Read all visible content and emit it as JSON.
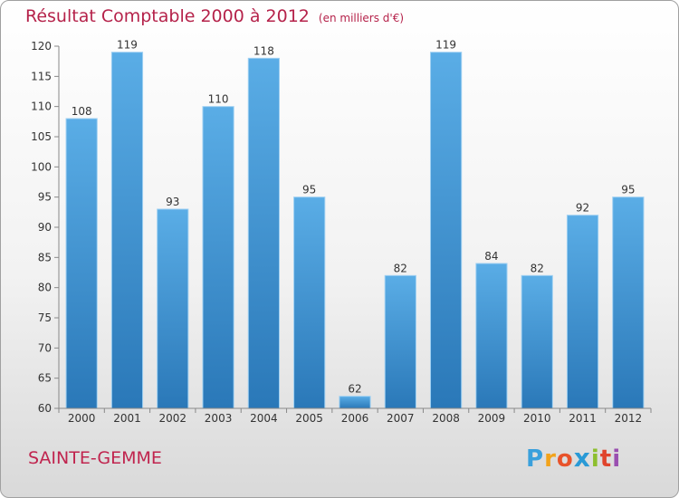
{
  "page": {
    "commune": "SAINTE-GEMME",
    "logo_letters": [
      "P",
      "r",
      "o",
      "x",
      "i",
      "t",
      "i"
    ]
  },
  "colors": {
    "title": "#b5224a",
    "bar_top": "#5aade6",
    "bar_bottom": "#2a78b8",
    "axis": "#888888",
    "text": "#333333"
  },
  "chart_data": {
    "type": "bar",
    "title": "Résultat Comptable 2000 à 2012",
    "subtitle": "(en milliers d'€)",
    "xlabel": "",
    "ylabel": "",
    "categories": [
      "2000",
      "2001",
      "2002",
      "2003",
      "2004",
      "2005",
      "2006",
      "2007",
      "2008",
      "2009",
      "2010",
      "2011",
      "2012"
    ],
    "values": [
      108,
      119,
      93,
      110,
      118,
      95,
      62,
      82,
      119,
      84,
      82,
      92,
      95
    ],
    "ylim": [
      60,
      120
    ],
    "yticks": [
      60,
      65,
      70,
      75,
      80,
      85,
      90,
      95,
      100,
      105,
      110,
      115,
      120
    ],
    "grid": false,
    "legend": "none"
  }
}
